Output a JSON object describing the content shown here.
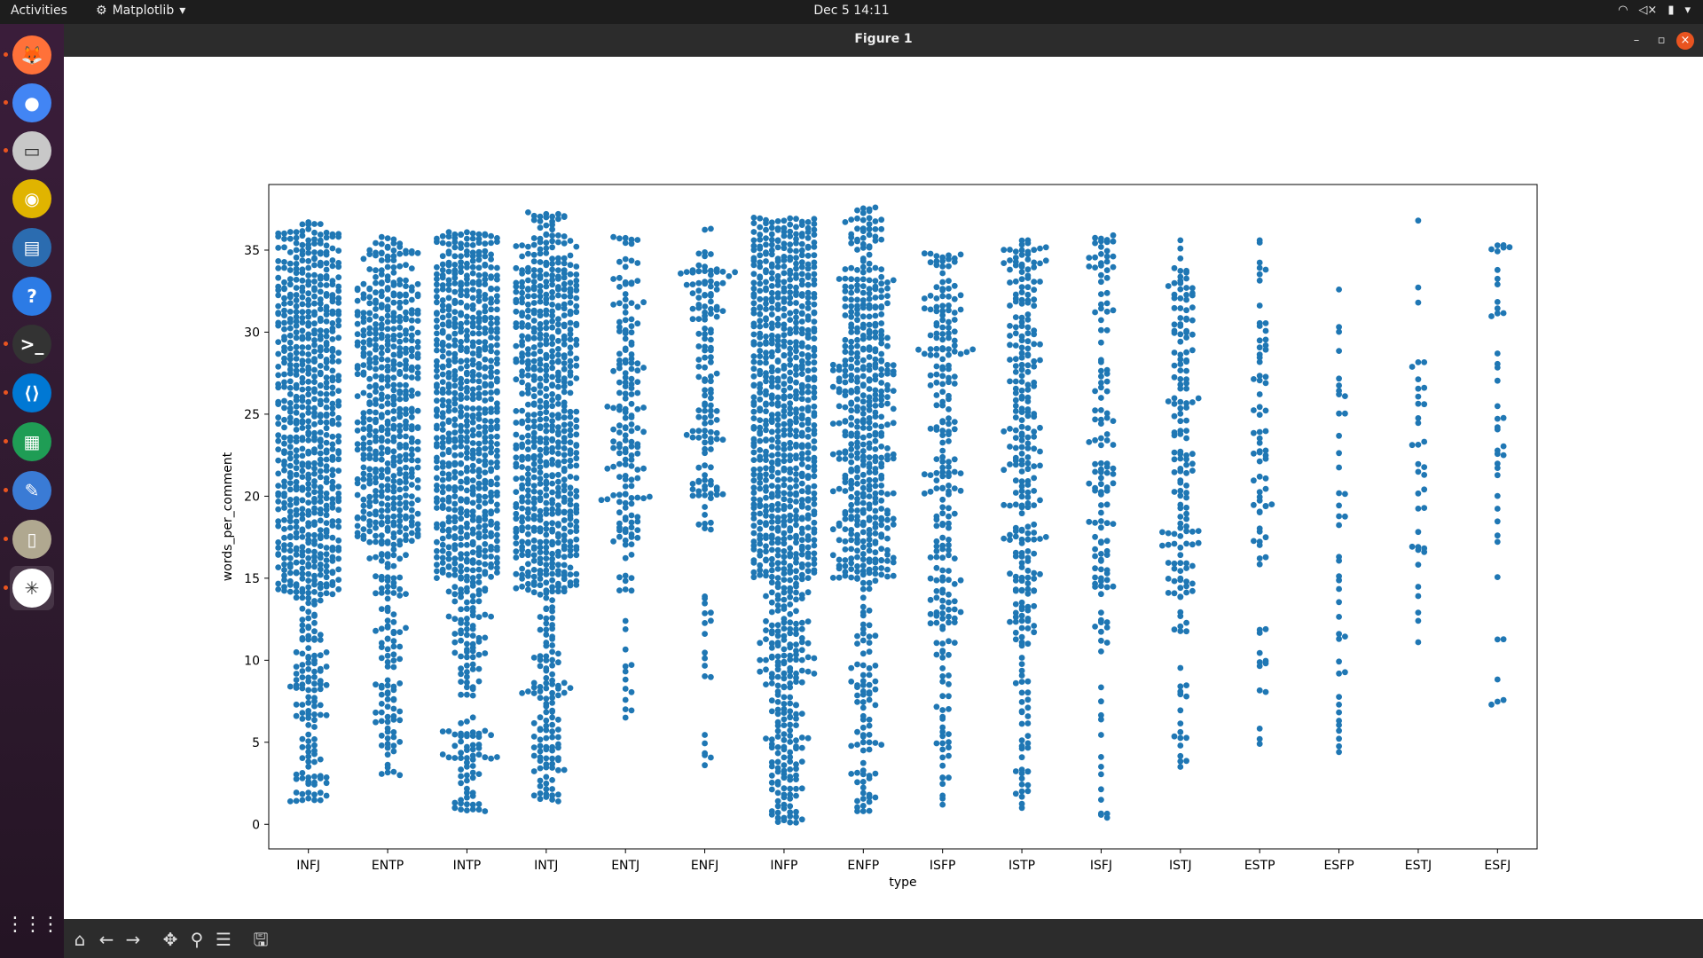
{
  "topbar": {
    "activities": "Activities",
    "app_menu": "Matplotlib",
    "clock": "Dec 5  14:11"
  },
  "window": {
    "title": "Figure 1"
  },
  "dock": {
    "items": [
      {
        "name": "firefox",
        "color": "#ff7139",
        "glyph": "🦊"
      },
      {
        "name": "chrome",
        "color": "#4285f4",
        "glyph": "●"
      },
      {
        "name": "files",
        "color": "#c8c8c8",
        "glyph": "▭"
      },
      {
        "name": "rhythmbox",
        "color": "#e0b400",
        "glyph": "◉"
      },
      {
        "name": "writer",
        "color": "#2b6cb0",
        "glyph": "▤"
      },
      {
        "name": "help",
        "color": "#2c7be5",
        "glyph": "?"
      },
      {
        "name": "terminal",
        "color": "#333333",
        "glyph": ">_"
      },
      {
        "name": "vscode",
        "color": "#0078d4",
        "glyph": "⟨⟩"
      },
      {
        "name": "calc",
        "color": "#1f9d55",
        "glyph": "▦"
      },
      {
        "name": "text-editor",
        "color": "#3a7bd5",
        "glyph": "✎"
      },
      {
        "name": "archive",
        "color": "#b0a890",
        "glyph": "▯"
      },
      {
        "name": "matplotlib",
        "color": "#ffffff",
        "glyph": "✳"
      }
    ],
    "apps_grid": "⋮⋮⋮"
  },
  "toolbar": {
    "buttons": [
      {
        "name": "home",
        "glyph": "⌂"
      },
      {
        "name": "back",
        "glyph": "←"
      },
      {
        "name": "forward",
        "glyph": "→"
      },
      {
        "name": "pan",
        "glyph": "✥"
      },
      {
        "name": "zoom",
        "glyph": "⚲"
      },
      {
        "name": "configure",
        "glyph": "☰"
      },
      {
        "name": "save",
        "glyph": "🖫"
      }
    ]
  },
  "chart_data": {
    "type": "scatter",
    "subtype": "swarmplot",
    "xlabel": "type",
    "ylabel": "words_per_comment",
    "categories": [
      "INFJ",
      "ENTP",
      "INTP",
      "INTJ",
      "ENTJ",
      "ENFJ",
      "INFP",
      "ENFP",
      "ISFP",
      "ISTP",
      "ISFJ",
      "ISTJ",
      "ESTP",
      "ESFP",
      "ESTJ",
      "ESFJ"
    ],
    "ylim": [
      -1.5,
      39
    ],
    "yticks": [
      0,
      5,
      10,
      15,
      20,
      25,
      30,
      35
    ],
    "marker_color": "#1f77b4",
    "grid": false,
    "series_ranges": [
      {
        "category": "INFJ",
        "min": 1.4,
        "max": 36.7,
        "dense_low": 14,
        "dense_high": 34,
        "approx_count": 900
      },
      {
        "category": "ENTP",
        "min": 3.0,
        "max": 35.8,
        "dense_low": 17,
        "dense_high": 33,
        "approx_count": 650
      },
      {
        "category": "INTP",
        "min": 0.8,
        "max": 36.1,
        "dense_low": 15,
        "dense_high": 34,
        "approx_count": 1000
      },
      {
        "category": "INTJ",
        "min": 1.4,
        "max": 37.3,
        "dense_low": 14,
        "dense_high": 34,
        "approx_count": 850
      },
      {
        "category": "ENTJ",
        "min": 6.5,
        "max": 35.8,
        "dense_low": 17,
        "dense_high": 32,
        "approx_count": 180
      },
      {
        "category": "ENFJ",
        "min": 3.6,
        "max": 36.3,
        "dense_low": 18,
        "dense_high": 34,
        "approx_count": 160
      },
      {
        "category": "INFP",
        "min": 0.1,
        "max": 37.0,
        "dense_low": 15,
        "dense_high": 35,
        "approx_count": 1350
      },
      {
        "category": "ENFP",
        "min": 0.8,
        "max": 37.6,
        "dense_low": 15,
        "dense_high": 34,
        "approx_count": 550
      },
      {
        "category": "ISFP",
        "min": 1.2,
        "max": 34.8,
        "dense_low": 12,
        "dense_high": 33,
        "approx_count": 240
      },
      {
        "category": "ISTP",
        "min": 1.0,
        "max": 35.6,
        "dense_low": 12,
        "dense_high": 34,
        "approx_count": 280
      },
      {
        "category": "ISFJ",
        "min": 0.4,
        "max": 35.9,
        "dense_low": 14,
        "dense_high": 34,
        "approx_count": 140
      },
      {
        "category": "ISTJ",
        "min": 3.5,
        "max": 35.6,
        "dense_low": 14,
        "dense_high": 33,
        "approx_count": 170
      },
      {
        "category": "ESTP",
        "min": 4.9,
        "max": 35.6,
        "dense_low": 16,
        "dense_high": 31,
        "approx_count": 75
      },
      {
        "category": "ESFP",
        "min": 4.4,
        "max": 32.6,
        "dense_low": 8,
        "dense_high": 31,
        "approx_count": 40
      },
      {
        "category": "ESTJ",
        "min": 11.1,
        "max": 36.8,
        "dense_low": 16,
        "dense_high": 32,
        "approx_count": 35
      },
      {
        "category": "ESFJ",
        "min": 7.3,
        "max": 35.3,
        "dense_low": 14,
        "dense_high": 35,
        "approx_count": 40
      }
    ]
  }
}
